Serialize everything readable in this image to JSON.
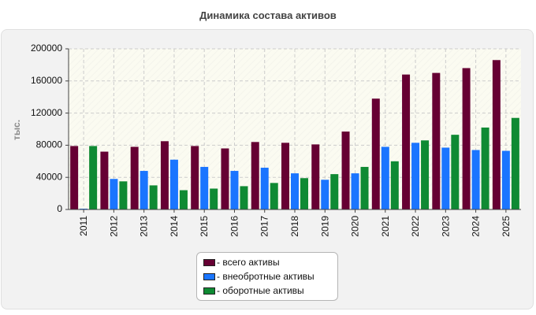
{
  "chart_data": {
    "type": "bar",
    "title": "Динамика состава активов",
    "ylabel": "тыс.",
    "xlabel": "",
    "categories": [
      "2011",
      "2012",
      "2013",
      "2014",
      "2015",
      "2016",
      "2017",
      "2018",
      "2019",
      "2020",
      "2021",
      "2022",
      "2023",
      "2024",
      "2025"
    ],
    "ylim": [
      0,
      200000
    ],
    "yticks": [
      0,
      40000,
      80000,
      120000,
      160000,
      200000
    ],
    "grid": true,
    "legend_position": "bottom-center",
    "series": [
      {
        "name": "всего активы",
        "color": "#660033",
        "values": [
          79000,
          72000,
          78000,
          85000,
          79000,
          76000,
          84000,
          83000,
          81000,
          97000,
          138000,
          168000,
          170000,
          176000,
          186000
        ]
      },
      {
        "name": "внеобротные активы",
        "color": "#1a75ff",
        "values": [
          1000,
          38000,
          48000,
          62000,
          53000,
          48000,
          52000,
          45000,
          37000,
          45000,
          78000,
          83000,
          77000,
          74000,
          73000
        ]
      },
      {
        "name": "оборотные активы",
        "color": "#0f8a33",
        "values": [
          79000,
          35000,
          30000,
          24000,
          26000,
          29000,
          33000,
          39000,
          44000,
          53000,
          60000,
          86000,
          93000,
          102000,
          114000
        ]
      }
    ]
  }
}
